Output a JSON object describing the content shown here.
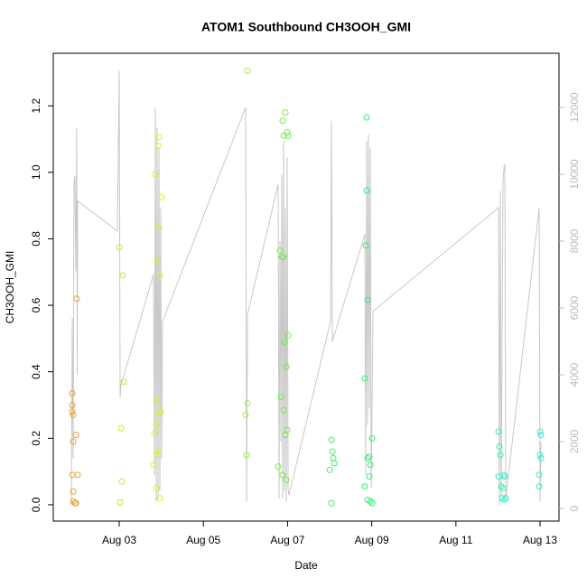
{
  "chart_data": {
    "type": "scatter",
    "title": "ATOM1 Southbound CH3OOH_GMI",
    "xlabel": "Date",
    "ylabel": "CH3OOH_GMI",
    "xlim": [
      1.433,
      13.45
    ],
    "xticks": [
      {
        "value": 3,
        "label": "Aug 03"
      },
      {
        "value": 5,
        "label": "Aug 05"
      },
      {
        "value": 7,
        "label": "Aug 07"
      },
      {
        "value": 9,
        "label": "Aug 09"
      },
      {
        "value": 11,
        "label": "Aug 11"
      },
      {
        "value": 13,
        "label": "Aug 13"
      }
    ],
    "ylim": [
      -0.049,
      1.358
    ],
    "yticks": [
      {
        "value": 0,
        "label": "0.0"
      },
      0.2,
      0.4,
      0.6,
      0.8,
      {
        "value": 1,
        "label": "1.0"
      },
      1.2
    ],
    "y2lim": [
      -378,
      13622
    ],
    "y2ticks": [
      0,
      2000,
      4000,
      6000,
      8000,
      10000,
      12000
    ],
    "series": [
      {
        "type": "line",
        "axis": "y2",
        "color": "#c8c8c8",
        "x": [
          1.863,
          1.884,
          1.906,
          1.927,
          1.948,
          1.97,
          1.991,
          2.002,
          2.013,
          2.957,
          3.0,
          3.021,
          3.043,
          3.815,
          3.837,
          3.858,
          3.88,
          3.901,
          3.923,
          3.944,
          3.966,
          3.987,
          4.009,
          4.03,
          6.004,
          6.026,
          6.047,
          6.777,
          6.798,
          6.82,
          6.841,
          6.863,
          6.884,
          6.906,
          6.927,
          6.948,
          6.97,
          6.991,
          7.013,
          7.034,
          8.021,
          8.043,
          8.064,
          8.837,
          8.858,
          8.88,
          8.901,
          8.923,
          8.944,
          8.966,
          8.987,
          9.009,
          9.03,
          12.013,
          12.034,
          12.056,
          12.077,
          12.12,
          12.142,
          12.163,
          12.185,
          12.979,
          13.0,
          13.021
        ],
        "values": [
          100,
          5700,
          1500,
          9800,
          9950,
          7100,
          11400,
          4000,
          9200,
          8300,
          13100,
          3300,
          3700,
          7000,
          1000,
          12000,
          200,
          11400,
          300,
          10800,
          500,
          9000,
          1500,
          5600,
          12000,
          200,
          5800,
          9700,
          300,
          8000,
          2000,
          10000,
          300,
          11000,
          500,
          9000,
          200,
          10500,
          600,
          400,
          5600,
          11600,
          5000,
          8200,
          1000,
          11000,
          2500,
          11200,
          3000,
          10800,
          600,
          3200,
          5900,
          9000,
          100,
          9500,
          400,
          9800,
          10200,
          10300,
          300,
          9000,
          200,
          2000
        ]
      },
      {
        "type": "scatter",
        "color": "#f0a030",
        "x": [
          1.884,
          1.884,
          1.884,
          1.906,
          1.906,
          1.884,
          1.906,
          1.906,
          1.948,
          1.97,
          2.013,
          1.991,
          1.97
        ],
        "values": [
          0.335,
          0.3,
          0.28,
          0.27,
          0.19,
          0.09,
          0.04,
          0.01,
          0.005,
          0.21,
          0.09,
          0.62,
          0.005
        ]
      },
      {
        "type": "scatter",
        "color": "#d8e030",
        "x": [
          3.0,
          3.086,
          3.107,
          3.043,
          3.064,
          3.021
        ],
        "values": [
          0.775,
          0.69,
          0.37,
          0.23,
          0.07,
          0.007
        ]
      },
      {
        "type": "scatter",
        "color": "#e0f020",
        "x": [
          3.858,
          3.923,
          3.944,
          4.009,
          3.944,
          3.901,
          3.966,
          3.88,
          3.944,
          3.987,
          3.88,
          3.837,
          3.944,
          3.901,
          3.815,
          3.88,
          3.966
        ],
        "values": [
          0.995,
          1.08,
          1.105,
          0.925,
          0.835,
          0.735,
          0.69,
          0.315,
          0.275,
          0.28,
          0.24,
          0.215,
          0.16,
          0.15,
          0.12,
          0.05,
          0.02
        ]
      },
      {
        "type": "scatter",
        "color": "#a0f040",
        "x": [
          6.047,
          6.047,
          6.004,
          6.026
        ],
        "values": [
          1.305,
          0.305,
          0.27,
          0.15
        ]
      },
      {
        "type": "scatter",
        "color": "#70f040",
        "x": [
          6.948,
          6.884,
          6.991,
          6.906,
          7.013,
          6.82,
          6.863,
          6.906,
          7.013,
          6.927,
          6.97,
          6.841,
          6.906,
          6.991,
          6.948,
          6.777,
          6.884,
          6.97
        ],
        "values": [
          1.18,
          1.155,
          1.12,
          1.11,
          1.11,
          0.765,
          0.745,
          0.745,
          0.51,
          0.49,
          0.415,
          0.325,
          0.285,
          0.225,
          0.21,
          0.115,
          0.09,
          0.075
        ]
      },
      {
        "type": "scatter",
        "color": "#40f060",
        "x": [
          8.043,
          8.064,
          8.086,
          8.107,
          8.0,
          8.043
        ],
        "values": [
          0.195,
          0.16,
          0.14,
          0.125,
          0.105,
          0.005
        ]
      },
      {
        "type": "scatter",
        "color": "#30f070",
        "x": [
          8.88,
          8.88,
          8.858,
          8.901,
          8.837,
          9.009,
          8.944,
          8.901,
          8.966,
          8.944,
          8.837,
          8.901,
          8.966,
          9.009
        ],
        "values": [
          1.165,
          0.945,
          0.78,
          0.615,
          0.38,
          0.2,
          0.145,
          0.14,
          0.12,
          0.085,
          0.055,
          0.015,
          0.01,
          0.005
        ]
      },
      {
        "type": "scatter",
        "color": "#30f0c0",
        "x": [
          12.013,
          12.034,
          12.056,
          12.013,
          12.077,
          12.12,
          12.142,
          12.163,
          12.099,
          12.142,
          12.185
        ],
        "values": [
          0.22,
          0.175,
          0.15,
          0.085,
          0.055,
          0.05,
          0.09,
          0.085,
          0.02,
          0.015,
          0.02
        ]
      },
      {
        "type": "scatter",
        "color": "#30f0d0",
        "x": [
          13.0,
          13.021,
          13.0,
          13.021,
          12.979,
          12.979
        ],
        "values": [
          0.22,
          0.21,
          0.15,
          0.14,
          0.09,
          0.055
        ]
      }
    ]
  }
}
